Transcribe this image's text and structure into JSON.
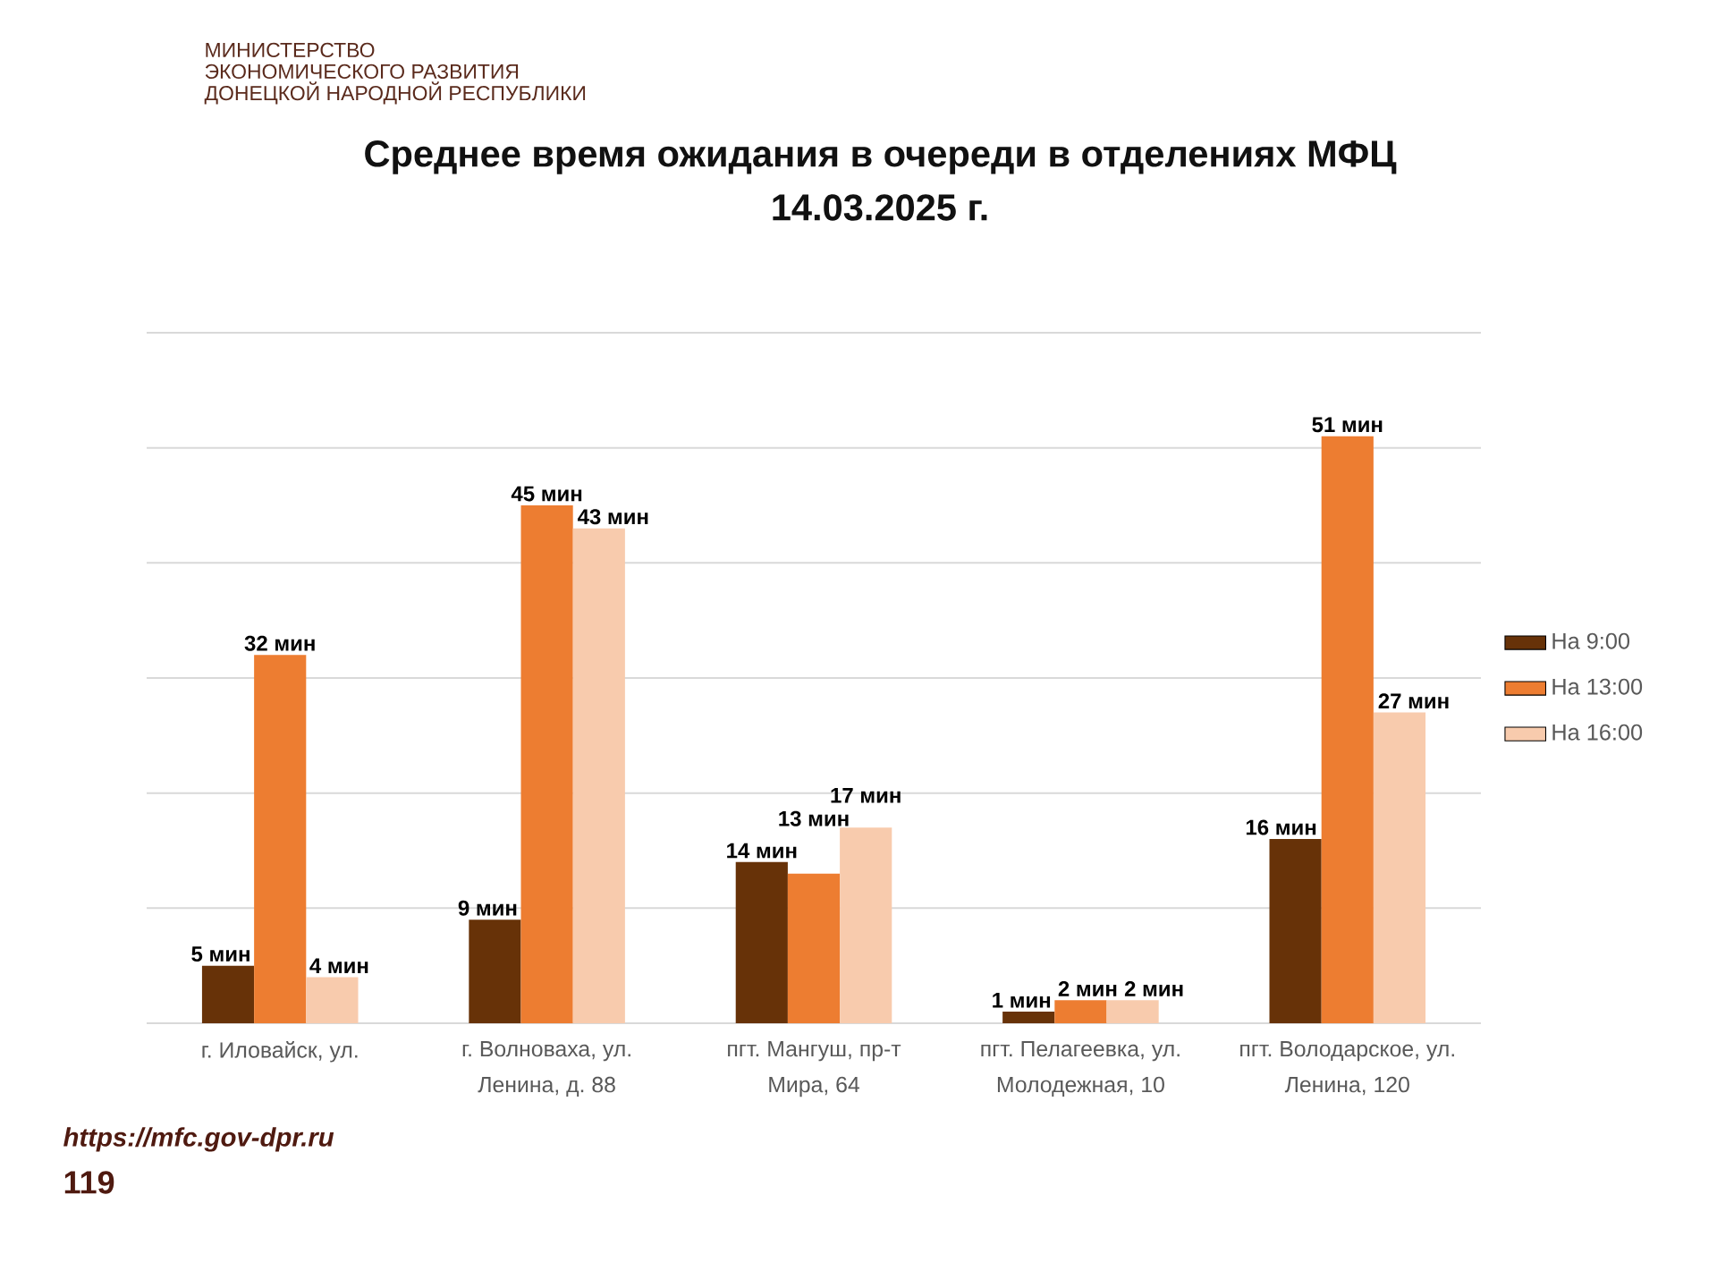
{
  "chart_data": {
    "type": "bar",
    "title": "Среднее время ожидания в очереди в отделениях МФЦ",
    "subtitle": "14.03.2025 г.",
    "categories": [
      "г. Иловайск, ул.",
      "г. Волноваха, ул. Ленина, д. 88",
      "пгт. Мангуш, пр-т Мира, 64",
      "пгт. Пелагеевка, ул. Молодежная, 10",
      "пгт. Володарское, ул. Ленина, 120"
    ],
    "series": [
      {
        "name": "На 9:00",
        "color": "#673208",
        "values": [
          5,
          9,
          14,
          1,
          16
        ],
        "value_labels": [
          "5 мин",
          "9 мин",
          "14 мин",
          "1 мин",
          "16 мин"
        ]
      },
      {
        "name": "На 13:00",
        "color": "#ed7d31",
        "values": [
          32,
          45,
          13,
          2,
          51
        ],
        "value_labels": [
          "32 мин",
          "45 мин",
          "13 мин",
          "2 мин",
          "51 мин"
        ]
      },
      {
        "name": "На 16:00",
        "color": "#f8cbad",
        "values": [
          4,
          43,
          17,
          2,
          27
        ],
        "value_labels": [
          "4 мин",
          "43 мин",
          "17 мин",
          "2 мин",
          "27 мин"
        ]
      }
    ],
    "ylim": [
      0,
      60
    ],
    "yticks": [
      {
        "value": 0,
        "label": null
      },
      {
        "value": 10,
        "label": null
      },
      {
        "value": 20,
        "label": null
      },
      {
        "value": 30,
        "label": null
      },
      {
        "value": 40,
        "label": null
      },
      {
        "value": 50,
        "label": null
      },
      {
        "value": 60,
        "label": null
      }
    ],
    "grid": "y",
    "legend": "right",
    "tick_labels": "x",
    "annotations": [
      "МИНИСТЕРСТВО",
      "ЭКОНОМИЧЕСКОГО РАЗВИТИЯ",
      "ДОНЕЦКОЙ НАРОДНОЙ РЕСПУБЛИКИ",
      "https://mfc.gov-dpr.ru",
      "119"
    ]
  }
}
